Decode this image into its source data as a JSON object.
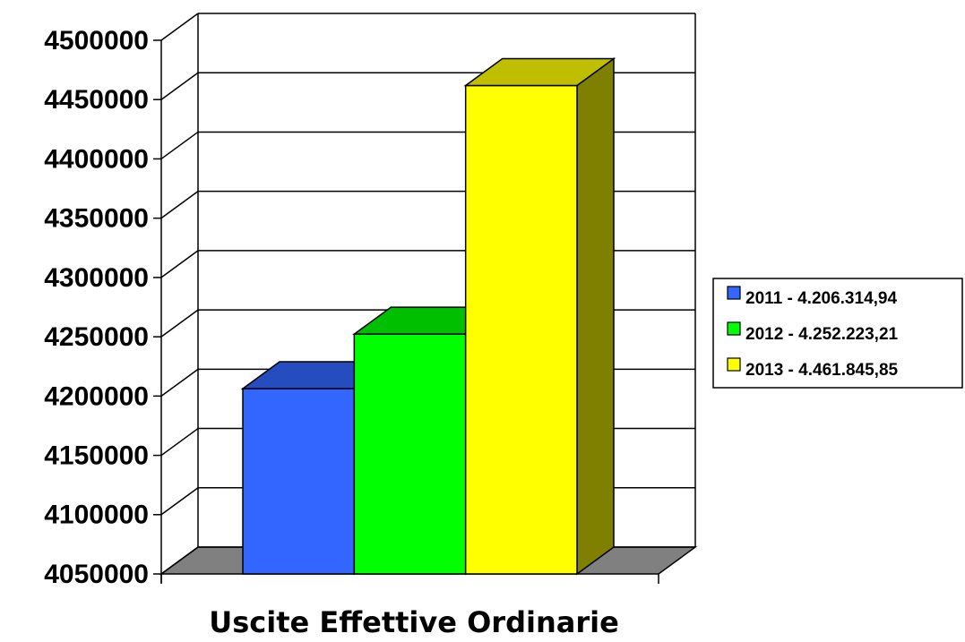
{
  "chart_data": {
    "type": "bar",
    "three_d": true,
    "x_label": "Uscite Effettive Ordinarie",
    "series": [
      {
        "name": "2011 - 4.206.314,94",
        "color": "#3366ff",
        "values": [
          4206314.94
        ]
      },
      {
        "name": "2012 - 4.252.223,21",
        "color": "#00ff00",
        "values": [
          4252223.21
        ]
      },
      {
        "name": "2013 - 4.461.845,85",
        "color": "#ffff00",
        "values": [
          4461845.85
        ]
      }
    ],
    "ylim": [
      4050000,
      4500000
    ],
    "yticks": [
      4050000,
      4100000,
      4150000,
      4200000,
      4250000,
      4300000,
      4350000,
      4400000,
      4450000,
      4500000
    ],
    "grid": true,
    "legend": "right"
  }
}
